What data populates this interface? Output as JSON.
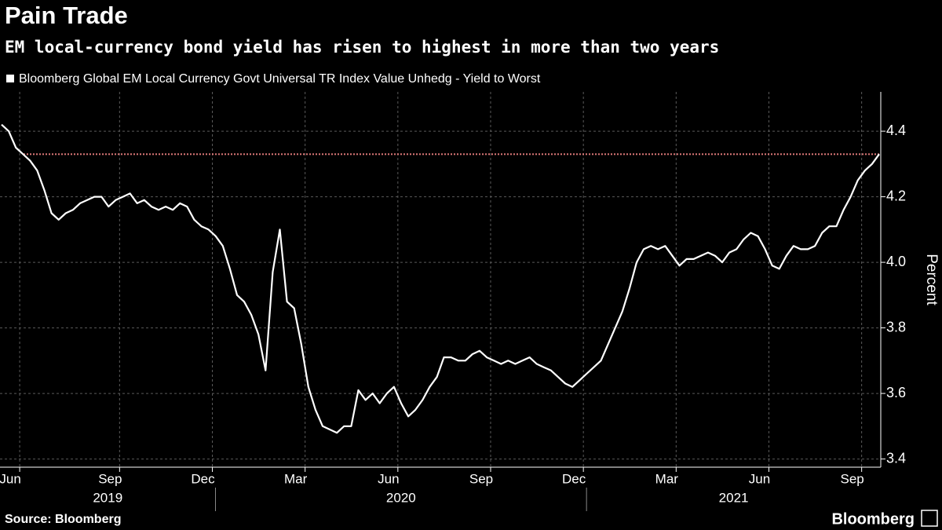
{
  "chart_data": {
    "type": "line",
    "title": "Pain Trade",
    "subtitle": "EM local-currency bond yield has risen to highest in more than two years",
    "y_label": "Percent",
    "source": "Source: Bloomberg",
    "logo": "Bloomberg",
    "years": [
      "2019",
      "2020",
      "2021"
    ],
    "categories": [
      null,
      "Jun",
      null,
      null,
      null,
      null,
      null,
      null,
      null,
      null,
      null,
      null,
      null,
      null,
      null,
      "Sep",
      null,
      null,
      null,
      null,
      null,
      null,
      null,
      null,
      null,
      null,
      null,
      null,
      "Dec",
      null,
      null,
      null,
      null,
      null,
      null,
      null,
      null,
      null,
      null,
      null,
      null,
      "Mar",
      null,
      null,
      null,
      null,
      null,
      null,
      null,
      null,
      null,
      null,
      null,
      null,
      "Jun",
      null,
      null,
      null,
      null,
      null,
      null,
      null,
      null,
      null,
      null,
      null,
      null,
      "Sep",
      null,
      null,
      null,
      null,
      null,
      null,
      null,
      null,
      null,
      null,
      null,
      null,
      "Dec",
      null,
      null,
      null,
      null,
      null,
      null,
      null,
      null,
      null,
      null,
      null,
      null,
      "Mar",
      null,
      null,
      null,
      null,
      null,
      null,
      null,
      null,
      null,
      null,
      null,
      null,
      "Jun",
      null,
      null,
      null,
      null,
      null,
      null,
      null,
      null,
      null,
      null,
      null,
      null,
      "Sep",
      null,
      null,
      null,
      null
    ],
    "series": [
      {
        "name": "Bloomberg Global EM Local Currency Govt Universal TR Index Value Unhedg - Yield to Worst",
        "color": "#ffffff",
        "values": [
          4.42,
          4.4,
          4.35,
          4.33,
          4.31,
          4.28,
          4.22,
          4.15,
          4.13,
          4.15,
          4.16,
          4.18,
          4.19,
          4.2,
          4.2,
          4.17,
          4.19,
          4.2,
          4.21,
          4.18,
          4.19,
          4.17,
          4.16,
          4.17,
          4.16,
          4.18,
          4.17,
          4.13,
          4.11,
          4.1,
          4.08,
          4.05,
          3.98,
          3.9,
          3.88,
          3.84,
          3.78,
          3.67,
          3.97,
          4.1,
          3.88,
          3.86,
          3.75,
          3.62,
          3.55,
          3.5,
          3.49,
          3.48,
          3.5,
          3.5,
          3.61,
          3.58,
          3.6,
          3.57,
          3.6,
          3.62,
          3.57,
          3.53,
          3.55,
          3.58,
          3.62,
          3.65,
          3.71,
          3.71,
          3.7,
          3.7,
          3.72,
          3.73,
          3.71,
          3.7,
          3.69,
          3.7,
          3.69,
          3.7,
          3.71,
          3.69,
          3.68,
          3.67,
          3.65,
          3.63,
          3.62,
          3.64,
          3.66,
          3.68,
          3.7,
          3.75,
          3.8,
          3.85,
          3.92,
          4.0,
          4.04,
          4.05,
          4.04,
          4.05,
          4.02,
          3.99,
          4.01,
          4.01,
          4.02,
          4.03,
          4.02,
          4.0,
          4.03,
          4.04,
          4.07,
          4.09,
          4.08,
          4.04,
          3.99,
          3.98,
          4.02,
          4.05,
          4.04,
          4.04,
          4.05,
          4.09,
          4.11,
          4.11,
          4.16,
          4.2,
          4.25,
          4.28,
          4.3,
          4.33
        ]
      }
    ],
    "reference_line": {
      "value": 4.33,
      "color": "#e07a7a"
    },
    "ylim": [
      3.375,
      4.52
    ],
    "yticks": [
      3.4,
      3.6,
      3.8,
      {
        "value": 4,
        "label": "4.0"
      },
      4.2,
      4.4
    ],
    "grid": true
  }
}
